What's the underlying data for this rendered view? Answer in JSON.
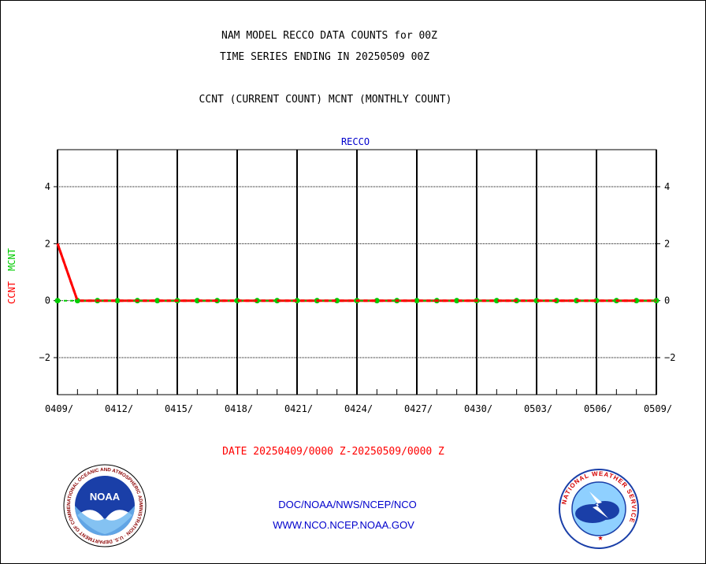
{
  "header": {
    "title_line1": "NAM MODEL RECCO DATA COUNTS for 00Z",
    "title_line2": "TIME SERIES ENDING IN 20250509 00Z",
    "subtitle": "CCNT (CURRENT COUNT) MCNT (MONTHLY COUNT)"
  },
  "footer": {
    "date_range": "DATE 20250409/0000 Z-20250509/0000 Z",
    "agency_path": "DOC/NOAA/NWS/NCEP/NCO",
    "website": "WWW.NCO.NCEP.NOAA.GOV"
  },
  "logos": {
    "noaa": {
      "center_text": "NOAA",
      "ring_text": "NATIONAL OCEANIC AND ATMOSPHERIC ADMINISTRATION · U.S. DEPARTMENT OF COMMERCE"
    },
    "nws": {
      "ring_text": "NATIONAL WEATHER SERVICE"
    }
  },
  "colors": {
    "ccnt": "#ff0000",
    "mcnt": "#00cc00",
    "panel_label": "#0000cc",
    "grid": "#000000",
    "date_range": "#ff0000",
    "links": "#0000cc"
  },
  "chart_data": {
    "type": "line",
    "title": "RECCO",
    "ylabel_series": [
      {
        "text": "CCNT",
        "color": "#ff0000"
      },
      {
        "text": "MCNT",
        "color": "#00cc00"
      }
    ],
    "ylim": [
      -3.3,
      5.3
    ],
    "yticks": [
      -2,
      0,
      2,
      4
    ],
    "ytick_labels": [
      "−2",
      "0",
      "2",
      "4"
    ],
    "grid": true,
    "x_range_days": [
      0,
      30
    ],
    "xticks_days": [
      0,
      3,
      6,
      9,
      12,
      15,
      18,
      21,
      24,
      27,
      30
    ],
    "xtick_labels": [
      "0409/",
      "0412/",
      "0415/",
      "0418/",
      "0421/",
      "0424/",
      "0427/",
      "0430/",
      "0503/",
      "0506/",
      "0509/"
    ],
    "x": [
      "0409",
      "0410",
      "0411",
      "0412",
      "0413",
      "0414",
      "0415",
      "0416",
      "0417",
      "0418",
      "0419",
      "0420",
      "0421",
      "0422",
      "0423",
      "0424",
      "0425",
      "0426",
      "0427",
      "0428",
      "0429",
      "0430",
      "0501",
      "0502",
      "0503",
      "0504",
      "0505",
      "0506",
      "0507",
      "0508",
      "0509"
    ],
    "series": [
      {
        "name": "CCNT",
        "color": "#ff0000",
        "style": "solid",
        "values": [
          2,
          0,
          0,
          0,
          0,
          0,
          0,
          0,
          0,
          0,
          0,
          0,
          0,
          0,
          0,
          0,
          0,
          0,
          0,
          0,
          0,
          0,
          0,
          0,
          0,
          0,
          0,
          0,
          0,
          0,
          0
        ]
      },
      {
        "name": "MCNT",
        "color": "#00cc00",
        "style": "dashed-markers",
        "values": [
          0,
          0,
          0,
          0,
          0,
          0,
          0,
          0,
          0,
          0,
          0,
          0,
          0,
          0,
          0,
          0,
          0,
          0,
          0,
          0,
          0,
          0,
          0,
          0,
          0,
          0,
          0,
          0,
          0,
          0,
          0
        ]
      }
    ]
  }
}
